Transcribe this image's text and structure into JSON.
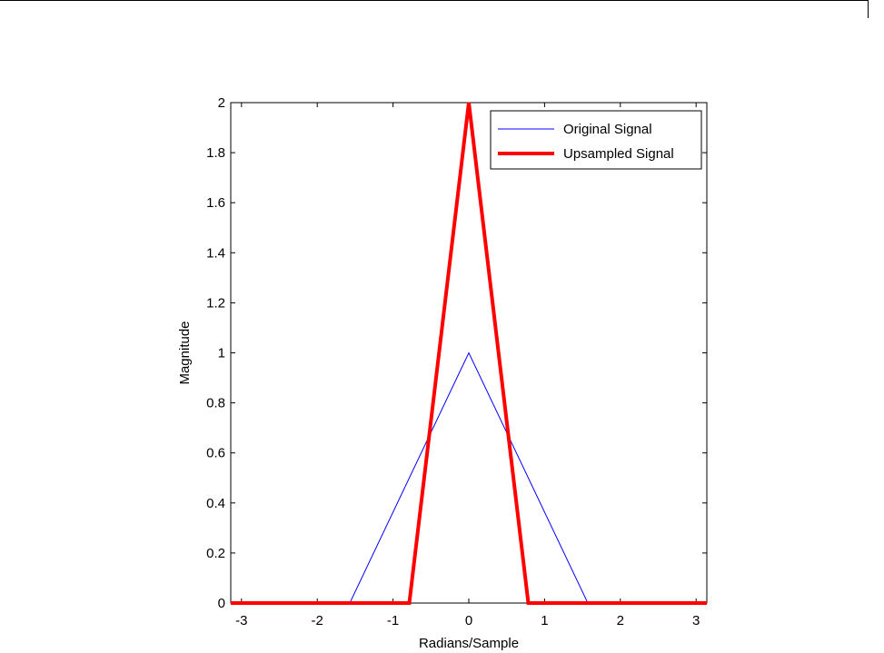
{
  "chart_data": {
    "type": "line",
    "xlabel": "Radians/Sample",
    "ylabel": "Magnitude",
    "xlim": [
      -3.1416,
      3.1416
    ],
    "ylim": [
      0,
      2
    ],
    "xticks": [
      -3,
      -2,
      -1,
      0,
      1,
      2,
      3
    ],
    "yticks": [
      0,
      0.2,
      0.4,
      0.6,
      0.8,
      1,
      1.2,
      1.4,
      1.6,
      1.8,
      2
    ],
    "grid": false,
    "legend_position": "top-right",
    "series": [
      {
        "name": "Original Signal",
        "color": "#0000ff",
        "x": [
          -3.1416,
          -1.5708,
          0,
          1.5708,
          3.1416
        ],
        "y": [
          0,
          0,
          1,
          0,
          0
        ]
      },
      {
        "name": "Upsampled Signal",
        "color": "#ff0000",
        "x": [
          -3.1416,
          -0.7854,
          0,
          0.7854,
          3.1416
        ],
        "y": [
          0,
          0,
          2,
          0,
          0
        ]
      }
    ]
  }
}
